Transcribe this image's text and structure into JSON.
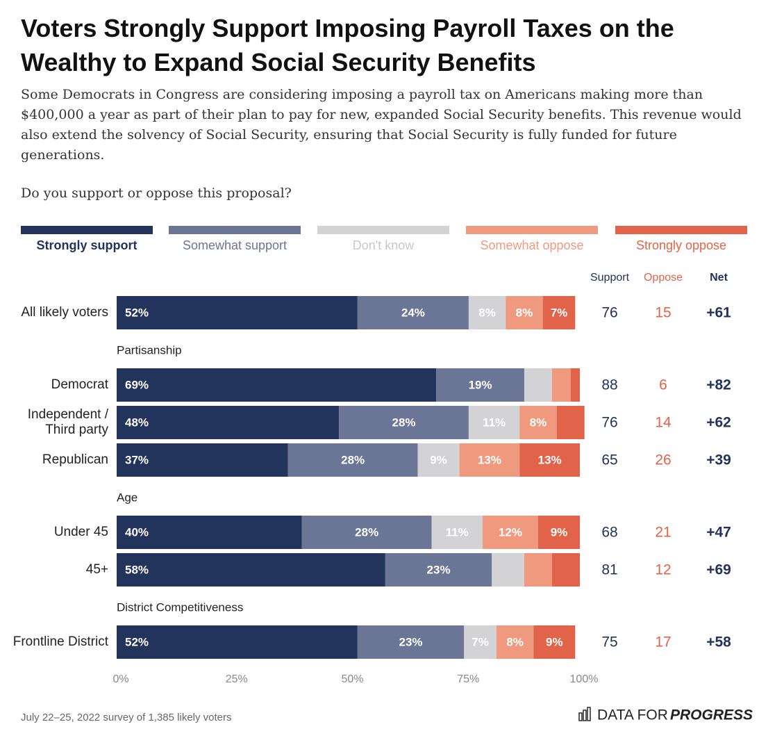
{
  "chart_data": {
    "type": "stacked-bar",
    "title": "Voters Strongly Support Imposing Payroll Taxes on the Wealthy to Expand Social Security Benefits",
    "subtitle": "Some Democrats in Congress are considering imposing a payroll tax on Americans making more than $400,000 a year as part of their plan to pay for new, expanded Social Security benefits. This revenue would also extend the solvency of Social Security, ensuring that Social Security is fully funded for future generations.",
    "question": "Do you support or oppose this proposal?",
    "categories": [
      "All likely voters",
      "Democrat",
      "Independent / Third party",
      "Republican",
      "Under 45",
      "45+",
      "Frontline District"
    ],
    "group_titles": [
      null,
      "Partisanship",
      null,
      null,
      "Age",
      null,
      "District Competitiveness"
    ],
    "series": [
      {
        "name": "Strongly support",
        "color": "#22335c",
        "values": [
          52,
          69,
          48,
          37,
          40,
          58,
          52
        ],
        "value_labels": [
          "52%",
          "69%",
          "48%",
          "37%",
          "40%",
          "58%",
          "52%"
        ]
      },
      {
        "name": "Somewhat support",
        "color": "#6b7595",
        "values": [
          24,
          19,
          28,
          28,
          28,
          23,
          23
        ],
        "value_labels": [
          "24%",
          "19%",
          "28%",
          "28%",
          "28%",
          "23%",
          "23%"
        ]
      },
      {
        "name": "Don't know",
        "color": "#d3d3d5",
        "values": [
          8,
          6,
          11,
          9,
          11,
          7,
          7
        ],
        "value_labels": [
          "8%",
          null,
          "11%",
          "9%",
          "11%",
          null,
          "7%"
        ]
      },
      {
        "name": "Somewhat oppose",
        "color": "#ef9a7e",
        "values": [
          8,
          4,
          8,
          13,
          12,
          6,
          8
        ],
        "value_labels": [
          "8%",
          null,
          "8%",
          "13%",
          "12%",
          null,
          "8%"
        ]
      },
      {
        "name": "Strongly oppose",
        "color": "#e0634a",
        "values": [
          7,
          2,
          6,
          13,
          9,
          6,
          9
        ],
        "value_labels": [
          "7%",
          null,
          null,
          "13%",
          "9%",
          null,
          "9%"
        ]
      }
    ],
    "xlim": [
      0,
      100
    ],
    "xticks": [
      {
        "value": 0,
        "label": "0%"
      },
      {
        "value": 25,
        "label": "25%"
      },
      {
        "value": 50,
        "label": "50%"
      },
      {
        "value": 75,
        "label": "75%"
      },
      {
        "value": 100,
        "label": "100%"
      }
    ],
    "summary": {
      "headers": [
        "Support",
        "Oppose",
        "Net"
      ],
      "support": [
        76,
        88,
        76,
        65,
        68,
        81,
        75
      ],
      "oppose": [
        15,
        6,
        14,
        26,
        21,
        12,
        17
      ],
      "net": [
        "+61",
        "+82",
        "+62",
        "+39",
        "+47",
        "+69",
        "+58"
      ]
    },
    "source": "July 22–25, 2022 survey of 1,385 likely voters",
    "brand": "DATA FOR",
    "brand_emphasis": "PROGRESS"
  }
}
